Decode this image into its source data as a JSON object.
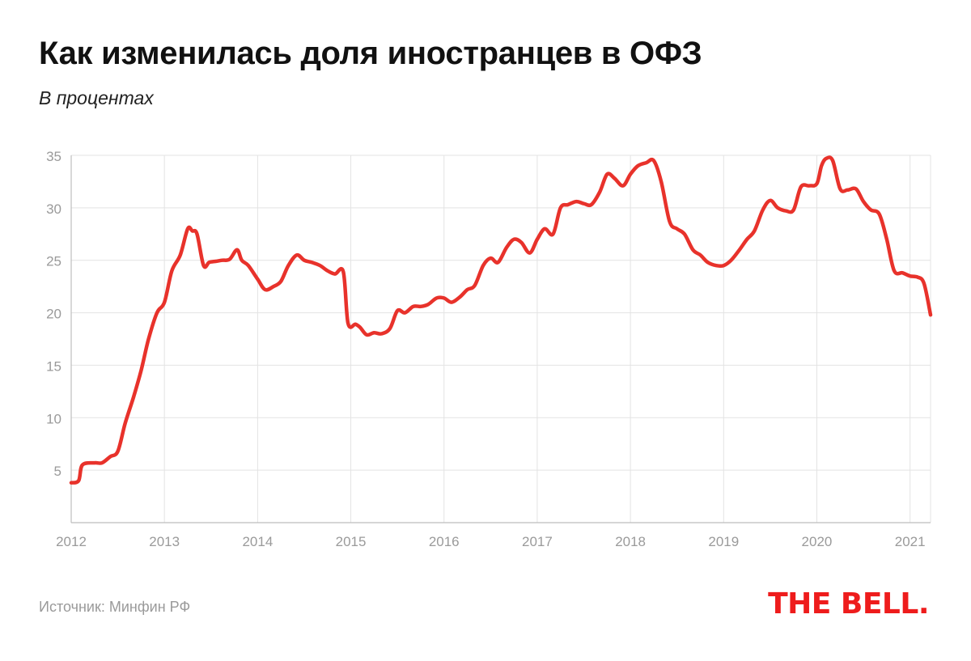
{
  "title": "Как изменилась доля иностранцев в ОФЗ",
  "subtitle": "В процентах",
  "source": "Источник: Минфин РФ",
  "logo_text": "THE BELL.",
  "colors": {
    "line": "#e8322b",
    "grid": "#e3e3e3",
    "axis": "#bdbdbd",
    "tick_label": "#9a9a9a",
    "logo": "#ee1c1c"
  },
  "chart_data": {
    "type": "line",
    "title": "Как изменилась доля иностранцев в ОФЗ",
    "subtitle": "В процентах",
    "xlabel": "",
    "ylabel": "",
    "xlim": [
      2012,
      2021.22
    ],
    "ylim": [
      0,
      35
    ],
    "y_ticks": [
      5,
      10,
      15,
      20,
      25,
      30,
      35
    ],
    "x_ticks": [
      "2012",
      "2013",
      "2014",
      "2015",
      "2016",
      "2017",
      "2018",
      "2019",
      "2020",
      "2021"
    ],
    "grid": true,
    "legend": "none",
    "series": [
      {
        "x": [
          2012.0,
          2012.08,
          2012.12,
          2012.25,
          2012.33,
          2012.42,
          2012.5,
          2012.58,
          2012.67,
          2012.75,
          2012.83,
          2012.92,
          2013.0,
          2013.08,
          2013.17,
          2013.25,
          2013.3,
          2013.35,
          2013.42,
          2013.48,
          2013.55,
          2013.62,
          2013.7,
          2013.78,
          2013.83,
          2013.9,
          2014.0,
          2014.08,
          2014.17,
          2014.25,
          2014.33,
          2014.42,
          2014.5,
          2014.58,
          2014.67,
          2014.75,
          2014.83,
          2014.92,
          2014.97,
          2015.05,
          2015.1,
          2015.17,
          2015.25,
          2015.33,
          2015.42,
          2015.5,
          2015.58,
          2015.67,
          2015.75,
          2015.83,
          2015.92,
          2016.0,
          2016.08,
          2016.17,
          2016.25,
          2016.33,
          2016.42,
          2016.5,
          2016.58,
          2016.67,
          2016.75,
          2016.83,
          2016.92,
          2017.0,
          2017.08,
          2017.17,
          2017.25,
          2017.33,
          2017.42,
          2017.5,
          2017.58,
          2017.67,
          2017.75,
          2017.83,
          2017.92,
          2018.0,
          2018.08,
          2018.17,
          2018.25,
          2018.33,
          2018.42,
          2018.5,
          2018.58,
          2018.67,
          2018.75,
          2018.83,
          2018.92,
          2019.0,
          2019.08,
          2019.17,
          2019.25,
          2019.33,
          2019.42,
          2019.5,
          2019.58,
          2019.67,
          2019.75,
          2019.83,
          2019.92,
          2020.0,
          2020.05,
          2020.1,
          2020.17,
          2020.25,
          2020.33,
          2020.42,
          2020.5,
          2020.58,
          2020.67,
          2020.75,
          2020.83,
          2020.92,
          2021.0,
          2021.08,
          2021.15,
          2021.22
        ],
        "values": [
          3.8,
          4.0,
          5.5,
          5.7,
          5.7,
          6.3,
          6.8,
          9.5,
          12.0,
          14.5,
          17.5,
          20.0,
          21.0,
          24.0,
          25.5,
          28.0,
          27.8,
          27.5,
          24.5,
          24.8,
          24.9,
          25.0,
          25.1,
          26.0,
          25.0,
          24.5,
          23.2,
          22.2,
          22.5,
          23.0,
          24.5,
          25.5,
          25.0,
          24.8,
          24.5,
          24.0,
          23.7,
          23.9,
          19.0,
          18.9,
          18.6,
          17.9,
          18.1,
          18.0,
          18.5,
          20.2,
          20.0,
          20.6,
          20.6,
          20.8,
          21.4,
          21.4,
          21.0,
          21.5,
          22.2,
          22.6,
          24.5,
          25.2,
          24.8,
          26.2,
          27.0,
          26.7,
          25.7,
          27.0,
          28.0,
          27.5,
          30.0,
          30.3,
          30.6,
          30.4,
          30.3,
          31.5,
          33.2,
          32.8,
          32.1,
          33.2,
          34.0,
          34.3,
          34.5,
          32.5,
          28.7,
          28.0,
          27.5,
          26.0,
          25.5,
          24.8,
          24.5,
          24.5,
          25.0,
          26.0,
          27.0,
          27.8,
          29.8,
          30.7,
          30.0,
          29.7,
          29.8,
          32.0,
          32.1,
          32.3,
          34.0,
          34.7,
          34.5,
          31.8,
          31.7,
          31.8,
          30.6,
          29.8,
          29.4,
          27.0,
          24.0,
          23.8,
          23.5,
          23.4,
          22.8,
          19.8
        ]
      }
    ]
  }
}
